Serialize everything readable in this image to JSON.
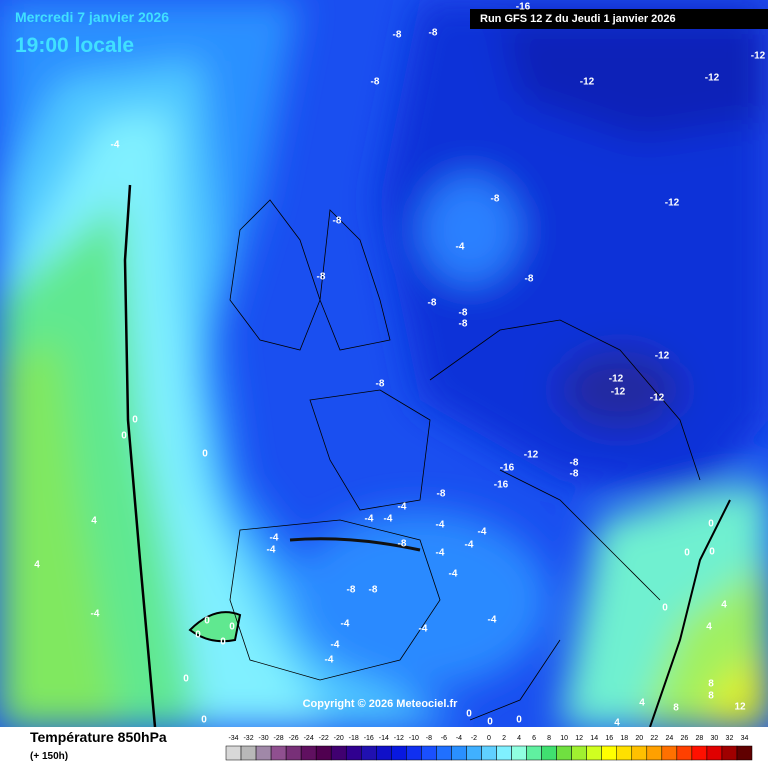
{
  "header": {
    "date": "Mercredi 7 janvier 2026",
    "time": "19:00 locale",
    "run": "Run GFS 12 Z du Jeudi 1 janvier 2026"
  },
  "map": {
    "contour_labels": [
      -16,
      -8,
      -8,
      -8,
      -12,
      -12,
      -12,
      -4,
      -8,
      -12,
      -8,
      -4,
      -8,
      -8,
      -8,
      -8,
      -8,
      -12,
      -12,
      -12,
      -12,
      -8,
      0,
      0,
      0,
      -12,
      -8,
      -16,
      -8,
      -16,
      -8,
      -4,
      -4,
      -4,
      -4,
      -4,
      -4,
      -4,
      -8,
      -4,
      -4,
      4,
      0,
      0,
      0,
      4,
      -4,
      -8,
      -8,
      -4,
      0,
      4,
      -4,
      -4,
      -4,
      0,
      0,
      0,
      4,
      0,
      -4,
      -4,
      0,
      8,
      8,
      4,
      12,
      8,
      0,
      0,
      0,
      4,
      0
    ],
    "copyright": "Copyright © 2026 Meteociel.fr"
  },
  "legend": {
    "title": "Température 850hPa",
    "subtitle": "(+ 150h)",
    "scale": [
      -34,
      -32,
      -30,
      -28,
      -26,
      -24,
      -22,
      -20,
      -18,
      -16,
      -14,
      -12,
      -10,
      -8,
      -6,
      -4,
      -2,
      0,
      2,
      4,
      6,
      8,
      10,
      12,
      14,
      16,
      18,
      20,
      22,
      24,
      26,
      28,
      30,
      32,
      34
    ],
    "colors": [
      "#d8d8d8",
      "#b8b8b8",
      "#a088a8",
      "#905090",
      "#783078",
      "#601060",
      "#500050",
      "#400070",
      "#300090",
      "#2010b0",
      "#1010c8",
      "#0818e0",
      "#1030f0",
      "#1a50ff",
      "#2070ff",
      "#2a90ff",
      "#40b0ff",
      "#60d0ff",
      "#80f0ff",
      "#90ffe0",
      "#60f0a0",
      "#40e070",
      "#70e040",
      "#a0f030",
      "#d0ff20",
      "#ffff00",
      "#ffe000",
      "#ffc000",
      "#ffa000",
      "#ff7000",
      "#ff4000",
      "#ff1000",
      "#e00000",
      "#a00000",
      "#600000"
    ]
  }
}
